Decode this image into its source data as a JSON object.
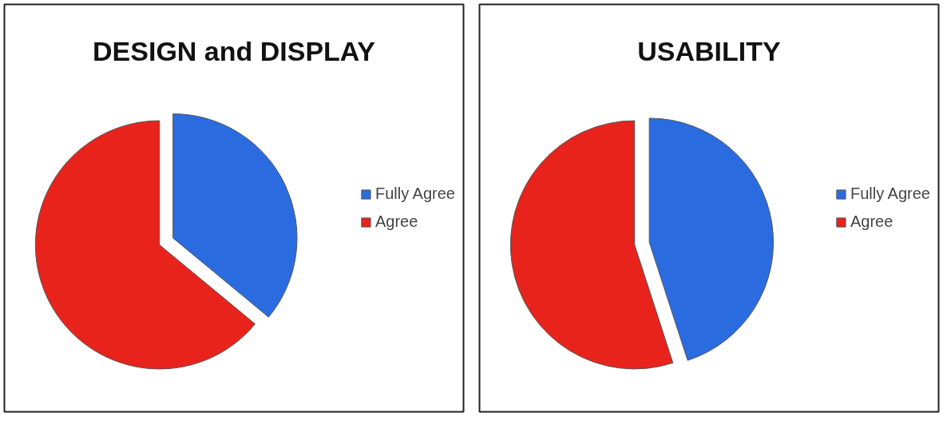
{
  "chart_data": [
    {
      "type": "pie",
      "title": "DESIGN and DISPLAY",
      "categories": [
        "Fully Agree",
        "Agree"
      ],
      "values": [
        36,
        64
      ],
      "colors": [
        "#2a6ce0",
        "#e8231c"
      ],
      "legend": "right"
    },
    {
      "type": "pie",
      "title": "USABILITY",
      "categories": [
        "Fully Agree",
        "Agree"
      ],
      "values": [
        45,
        55
      ],
      "colors": [
        "#2a6ce0",
        "#e8231c"
      ],
      "legend": "right"
    }
  ]
}
